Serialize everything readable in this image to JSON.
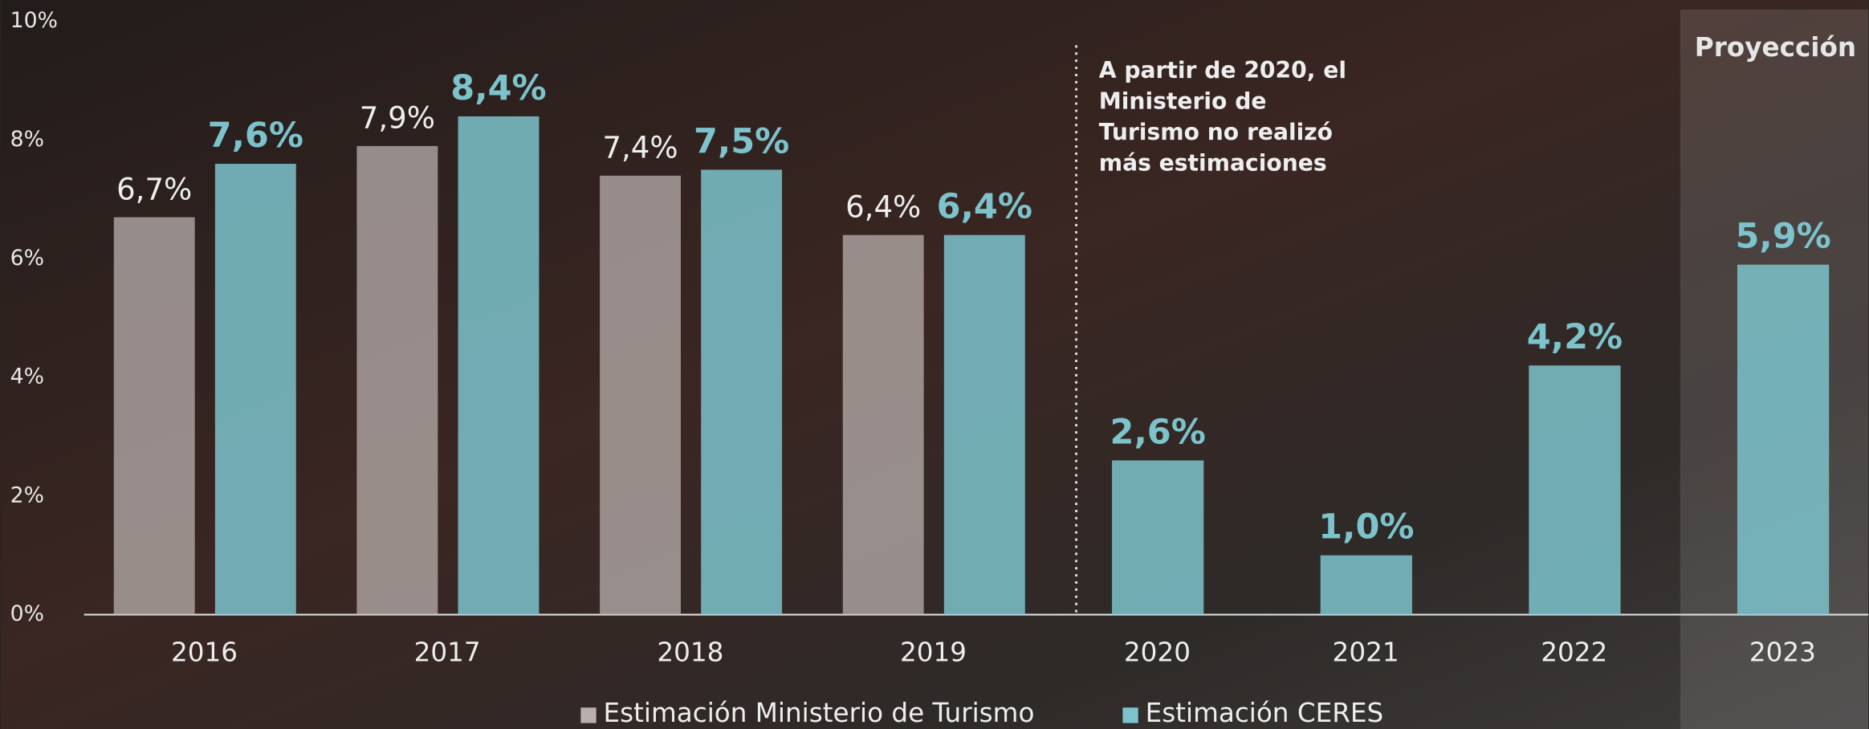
{
  "chart_data": {
    "type": "bar",
    "categories": [
      "2016",
      "2017",
      "2018",
      "2019",
      "2020",
      "2021",
      "2022",
      "2023"
    ],
    "series": [
      {
        "name": "Estimación Ministerio de Turismo",
        "color": "#b9b0ae",
        "values": [
          6.7,
          7.9,
          7.4,
          6.4,
          null,
          null,
          null,
          null
        ],
        "value_labels": [
          "6,7%",
          "7,9%",
          "7,4%",
          "6,4%",
          null,
          null,
          null,
          null
        ]
      },
      {
        "name": "Estimación CERES",
        "color": "#7cc3cc",
        "values": [
          7.6,
          8.4,
          7.5,
          6.4,
          2.6,
          1.0,
          4.2,
          5.9
        ],
        "value_labels": [
          "7,6%",
          "8,4%",
          "7,5%",
          "6,4%",
          "2,6%",
          "1,0%",
          "4,2%",
          "5,9%"
        ]
      }
    ],
    "ylim": [
      0,
      10
    ],
    "yticks": [
      {
        "value": 0,
        "label": "0%"
      },
      {
        "value": 2,
        "label": "2%"
      },
      {
        "value": 4,
        "label": "4%"
      },
      {
        "value": 6,
        "label": "6%"
      },
      {
        "value": 8,
        "label": "8%"
      },
      {
        "value": 10,
        "label": "10%"
      }
    ],
    "annotation": [
      "A partir de 2020, el",
      "Ministerio de",
      "Turismo no realizó",
      "más estimaciones"
    ],
    "projection_label": "Proyección"
  }
}
